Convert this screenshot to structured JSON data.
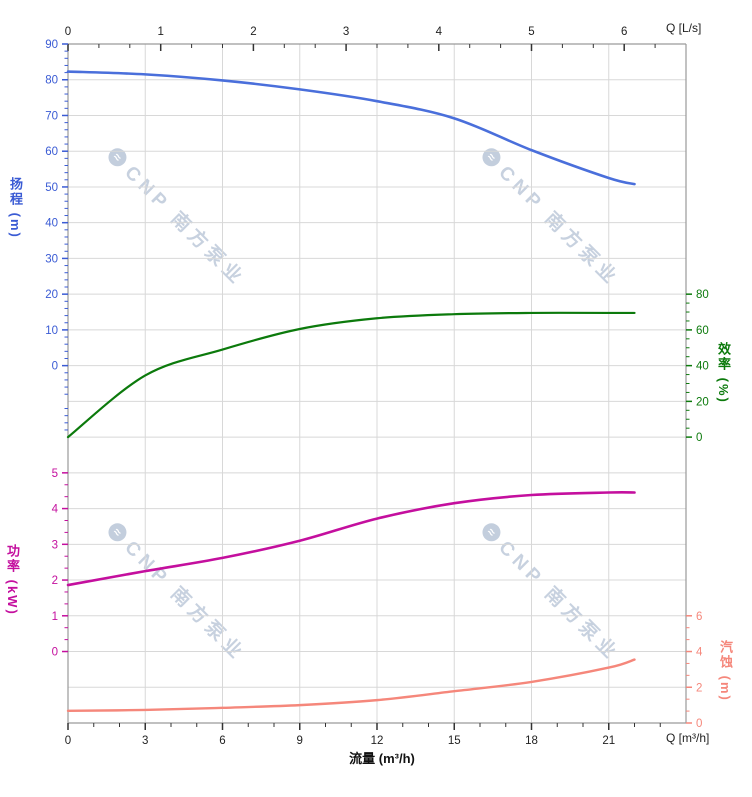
{
  "watermark": {
    "logo_glyph": "≈",
    "text": "CNP 南方泵业"
  },
  "axis_titles": {
    "top_q": "Q [L/s]",
    "bottom_q": "Q [m³/h]",
    "flow": "流量 (m³/h)",
    "head": "扬程 (m)",
    "efficiency": "效率 (%)",
    "power": "功率 (kW)",
    "npsh": "汽蚀 (m)"
  },
  "colors": {
    "head": "#3a5bd4",
    "head_curve": "#4a6fdb",
    "efficiency": "#0c7a0c",
    "power": "#c40f9e",
    "npsh": "#f5877b",
    "grid": "#d8d8d8",
    "frame": "#9a9a9a",
    "tick_text": "#222222"
  },
  "chart_data": {
    "type": "line",
    "title": "",
    "xlabel_bottom": "流量 (m³/h)",
    "xlabel_top": "Q [L/s]",
    "x_range_m3h": [
      0,
      24
    ],
    "grid": "on",
    "top_axis": {
      "label": "Q [L/s]",
      "ticks": [
        0,
        1,
        2,
        3,
        4,
        5,
        6
      ]
    },
    "bottom_axis": {
      "label": "Q [m³/h]",
      "ticks": [
        0,
        3,
        6,
        9,
        12,
        15,
        18,
        21
      ]
    },
    "y_axes": {
      "head": {
        "title": "扬程 (m)",
        "side": "left",
        "ticks": [
          90,
          80,
          70,
          60,
          50,
          40,
          30,
          20,
          10,
          0
        ],
        "units_per_row": 10
      },
      "efficiency": {
        "title": "效率 (%)",
        "side": "right",
        "ticks": [
          80,
          60,
          40,
          20,
          0
        ],
        "units_per_row": 20
      },
      "power": {
        "title": "功率 (kW)",
        "side": "left",
        "ticks": [
          5,
          4,
          3,
          2,
          1,
          0
        ],
        "units_per_row": 1
      },
      "npsh": {
        "title": "汽蚀 (m)",
        "side": "right",
        "ticks": [
          6,
          4,
          2,
          0
        ],
        "units_per_row": 2
      }
    },
    "series": [
      {
        "name": "head",
        "axis": "head",
        "color": "#4a6fdb",
        "x": [
          0,
          3,
          6,
          9,
          12,
          15,
          18,
          21,
          22
        ],
        "y": [
          82.3,
          81.5,
          79.8,
          77.3,
          74.0,
          69.2,
          60.3,
          52.5,
          50.8
        ]
      },
      {
        "name": "efficiency",
        "axis": "efficiency",
        "color": "#0c7a0c",
        "x": [
          0,
          3,
          6,
          9,
          12,
          15,
          18,
          21,
          22
        ],
        "y": [
          0,
          34.5,
          49,
          60.5,
          66.5,
          68.8,
          69.5,
          69.5,
          69.5
        ]
      },
      {
        "name": "power",
        "axis": "power",
        "color": "#c40f9e",
        "x": [
          0,
          3,
          6,
          9,
          12,
          15,
          18,
          21,
          22
        ],
        "y": [
          1.86,
          2.25,
          2.62,
          3.1,
          3.72,
          4.15,
          4.38,
          4.45,
          4.45
        ]
      },
      {
        "name": "npsh",
        "axis": "npsh",
        "color": "#f5877b",
        "x": [
          0,
          3,
          6,
          9,
          12,
          15,
          18,
          21,
          22
        ],
        "y": [
          0.68,
          0.73,
          0.85,
          1.0,
          1.28,
          1.78,
          2.3,
          3.1,
          3.55
        ]
      }
    ]
  }
}
